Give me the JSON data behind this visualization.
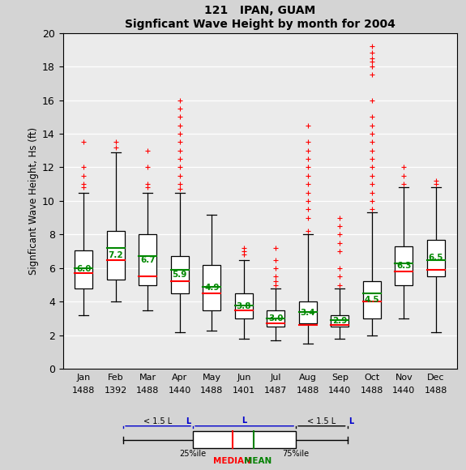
{
  "title_line1": "121   IPAN, GUAM",
  "title_line2": "Signficant Wave Height by month for 2004",
  "ylabel": "Signficant Wave Height, Hs (ft)",
  "months": [
    "Jan",
    "Feb",
    "Mar",
    "Apr",
    "May",
    "Jun",
    "Jul",
    "Aug",
    "Sep",
    "Oct",
    "Nov",
    "Dec"
  ],
  "counts": [
    "1488",
    "1392",
    "1488",
    "1440",
    "1488",
    "1401",
    "1487",
    "1488",
    "1440",
    "1488",
    "1440",
    "1488"
  ],
  "ylim": [
    0,
    20
  ],
  "yticks": [
    0,
    2,
    4,
    6,
    8,
    10,
    12,
    14,
    16,
    18,
    20
  ],
  "box_stats": [
    {
      "q1": 4.8,
      "median": 5.7,
      "q3": 7.05,
      "whislo": 3.2,
      "whishi": 10.5,
      "mean": 6.0,
      "fliers": [
        10.8,
        11.0,
        11.5,
        12.0,
        13.5
      ]
    },
    {
      "q1": 5.3,
      "median": 6.5,
      "q3": 8.2,
      "whislo": 4.0,
      "whishi": 12.9,
      "mean": 7.2,
      "fliers": [
        13.2,
        13.5
      ]
    },
    {
      "q1": 5.0,
      "median": 5.5,
      "q3": 8.0,
      "whislo": 3.5,
      "whishi": 10.5,
      "mean": 6.7,
      "fliers": [
        10.8,
        11.0,
        12.0,
        13.0
      ]
    },
    {
      "q1": 4.5,
      "median": 5.2,
      "q3": 6.7,
      "whislo": 2.2,
      "whishi": 10.5,
      "mean": 5.9,
      "fliers": [
        10.7,
        11.0,
        11.5,
        12.0,
        12.5,
        13.0,
        13.5,
        14.0,
        14.5,
        15.0,
        15.5,
        16.0
      ]
    },
    {
      "q1": 3.5,
      "median": 4.5,
      "q3": 6.2,
      "whislo": 2.3,
      "whishi": 9.2,
      "mean": 4.9,
      "fliers": []
    },
    {
      "q1": 3.0,
      "median": 3.5,
      "q3": 4.5,
      "whislo": 1.8,
      "whishi": 6.5,
      "mean": 3.8,
      "fliers": [
        6.8,
        7.0,
        7.2
      ]
    },
    {
      "q1": 2.5,
      "median": 2.7,
      "q3": 3.5,
      "whislo": 1.7,
      "whishi": 4.8,
      "mean": 3.0,
      "fliers": [
        5.0,
        5.2,
        5.5,
        6.0,
        6.5,
        7.2
      ]
    },
    {
      "q1": 2.7,
      "median": 2.6,
      "q3": 4.0,
      "whislo": 1.5,
      "whishi": 8.0,
      "mean": 3.4,
      "fliers": [
        8.2,
        9.0,
        9.5,
        10.0,
        10.5,
        11.0,
        11.5,
        12.0,
        12.5,
        13.0,
        13.5,
        14.5
      ]
    },
    {
      "q1": 2.5,
      "median": 2.6,
      "q3": 3.2,
      "whislo": 1.8,
      "whishi": 4.8,
      "mean": 2.9,
      "fliers": [
        5.0,
        5.5,
        6.0,
        7.0,
        7.5,
        8.0,
        8.5,
        9.0
      ]
    },
    {
      "q1": 3.0,
      "median": 4.0,
      "q3": 5.2,
      "whislo": 2.0,
      "whishi": 9.3,
      "mean": 4.5,
      "fliers": [
        9.5,
        10.0,
        10.5,
        11.0,
        11.5,
        12.0,
        12.5,
        13.0,
        13.5,
        14.0,
        14.5,
        15.0,
        16.0,
        17.5,
        18.0,
        18.3,
        18.5,
        18.8,
        19.2
      ]
    },
    {
      "q1": 5.0,
      "median": 5.8,
      "q3": 7.3,
      "whislo": 3.0,
      "whishi": 10.8,
      "mean": 6.3,
      "fliers": [
        11.0,
        11.5,
        12.0
      ]
    },
    {
      "q1": 5.5,
      "median": 5.9,
      "q3": 7.7,
      "whislo": 2.2,
      "whishi": 10.8,
      "mean": 6.5,
      "fliers": [
        11.0,
        11.2
      ]
    }
  ],
  "fig_bg": "#d4d4d4",
  "plot_bg": "#ebebeb",
  "grid_color": "#ffffff",
  "box_face": "#ffffff",
  "box_edge": "#000000",
  "median_color": "#ff0000",
  "mean_color": "#008800",
  "whisker_color": "#000000",
  "flier_color": "#ff0000",
  "box_width": 0.55,
  "legend_blue": "#0000cc"
}
